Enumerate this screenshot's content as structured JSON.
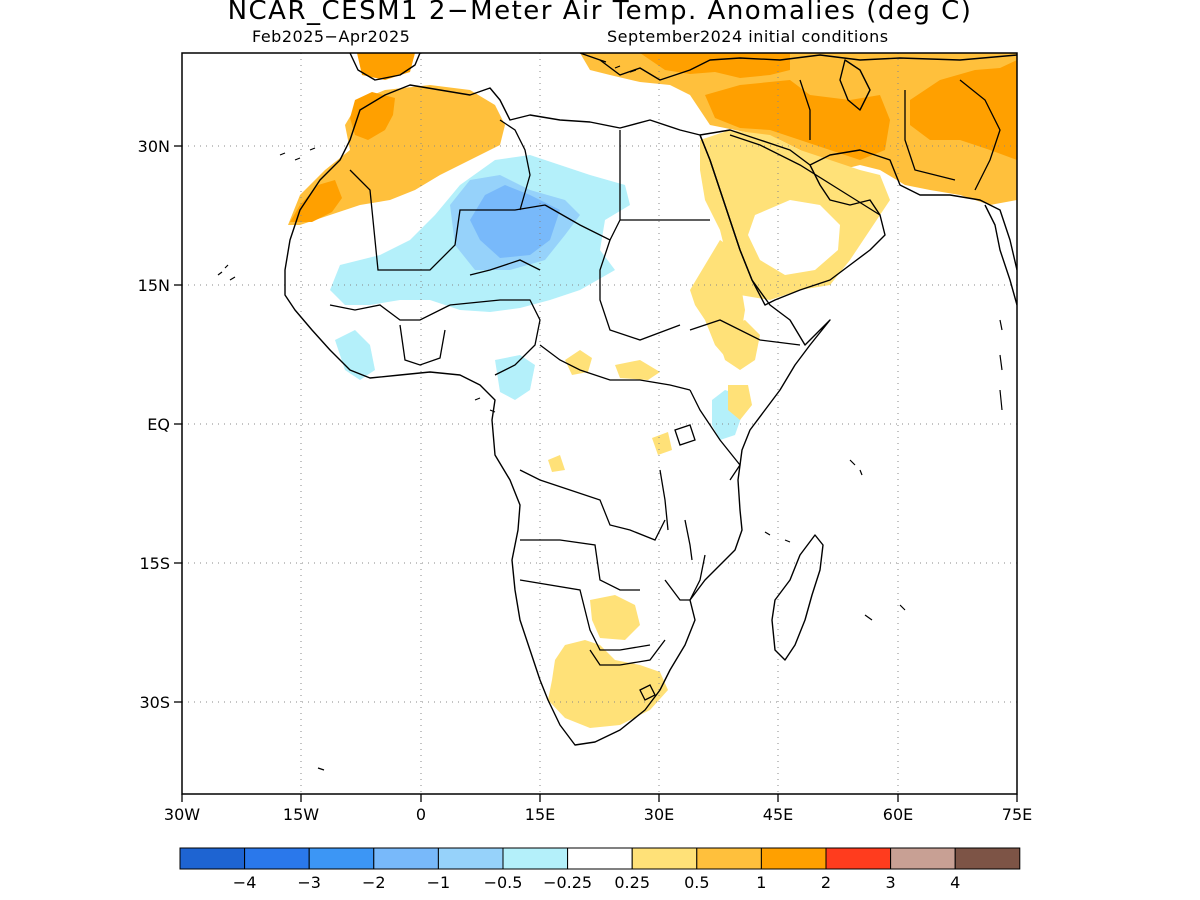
{
  "title": "NCAR_CESM1 2−Meter Air Temp. Anomalies (deg C)",
  "subtitle_left": "Feb2025−Apr2025",
  "subtitle_right": "September2024 initial conditions",
  "lat_labels": [
    "30N",
    "15N",
    "EQ",
    "15S",
    "30S"
  ],
  "lon_labels": [
    "30W",
    "15W",
    "0",
    "15E",
    "30E",
    "45E",
    "60E",
    "75E"
  ],
  "colorbar": {
    "colors": [
      "#1e64d2",
      "#2a78eb",
      "#3c96f5",
      "#78b9fa",
      "#96d2fa",
      "#b4f0fa",
      "#ffffff",
      "#ffe178",
      "#ffc03c",
      "#ffa000",
      "#ff3c1e",
      "#c8a094",
      "#7d5446"
    ],
    "tick_labels": [
      "−4",
      "−3",
      "−2",
      "−1",
      "−0.5",
      "−0.25",
      "0.25",
      "0.5",
      "1",
      "2",
      "3",
      "4"
    ]
  },
  "colors": {
    "light_orange": "#ffc03c",
    "orange": "#ffa000",
    "light_yellow": "#ffe178",
    "light_cyan": "#b4f0fa",
    "light_blue": "#96d2fa",
    "blue": "#78b9fa"
  }
}
